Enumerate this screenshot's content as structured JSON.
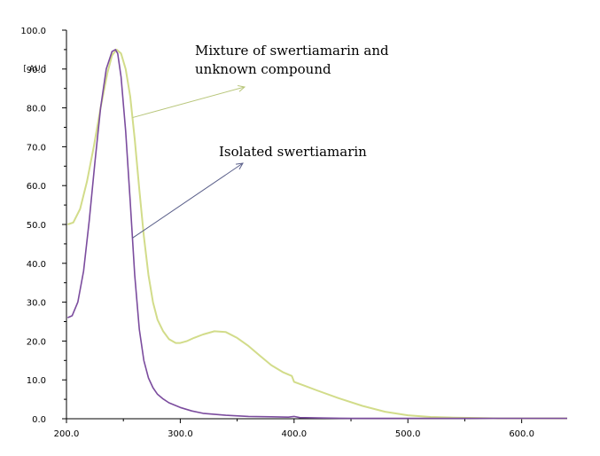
{
  "chart_data": {
    "type": "line",
    "title": "",
    "xlabel": "",
    "ylabel": "[ AU ]",
    "xlim": [
      200,
      640
    ],
    "ylim": [
      0,
      100
    ],
    "x_ticks": [
      "200.0",
      "300.0",
      "400.0",
      "500.0",
      "600.0"
    ],
    "y_ticks": [
      "0.0",
      "10.0",
      "20.0",
      "30.0",
      "40.0",
      "50.0",
      "60.0",
      "70.0",
      "80.0",
      "90.0",
      "100.0"
    ],
    "grid": false,
    "series": [
      {
        "name": "Mixture of swertiamarin and unknown compound",
        "color": "#d2dc8a",
        "x": [
          201,
          206,
          212,
          218,
          224,
          230,
          236,
          240,
          244,
          248,
          252,
          256,
          260,
          264,
          268,
          272,
          276,
          280,
          285,
          290,
          296,
          300,
          306,
          312,
          320,
          330,
          340,
          350,
          360,
          370,
          380,
          390,
          398,
          400,
          410,
          420,
          440,
          460,
          480,
          500,
          520,
          540,
          560,
          580,
          600,
          640
        ],
        "values": [
          50,
          50.5,
          54,
          61,
          70,
          80,
          89,
          93.5,
          95,
          94,
          90,
          83,
          72,
          59,
          47,
          37,
          30,
          25.5,
          22.5,
          20.5,
          19.5,
          19.5,
          20,
          20.8,
          21.7,
          22.5,
          22.3,
          20.8,
          18.7,
          16.2,
          13.8,
          12,
          11,
          9.5,
          8.4,
          7.3,
          5.2,
          3.3,
          1.8,
          0.9,
          0.45,
          0.3,
          0.2,
          0.1,
          0.1,
          0.1
        ]
      },
      {
        "name": "Isolated swertiamarin",
        "color": "#7b4c9e",
        "x": [
          201,
          205,
          210,
          215,
          220,
          225,
          230,
          235,
          240,
          243,
          245,
          248,
          252,
          256,
          260,
          264,
          268,
          272,
          276,
          280,
          285,
          290,
          300,
          310,
          320,
          340,
          360,
          380,
          395,
          400,
          405,
          420,
          450,
          500,
          560,
          640
        ],
        "values": [
          26,
          26.5,
          30,
          38,
          51,
          66,
          80,
          90,
          94.5,
          95,
          94,
          88,
          74,
          56,
          37,
          23,
          15,
          10.5,
          8,
          6.3,
          5.1,
          4.1,
          2.9,
          2,
          1.4,
          0.9,
          0.6,
          0.5,
          0.4,
          0.6,
          0.3,
          0.2,
          0.1,
          0.1,
          0.1,
          0.1
        ]
      }
    ],
    "annotations": [
      {
        "text_lines": [
          "Mixture of swertiamarin and",
          "unknown compound"
        ],
        "target_series": 0
      },
      {
        "text_lines": [
          "Isolated swertiamarin"
        ],
        "target_series": 1
      }
    ]
  }
}
